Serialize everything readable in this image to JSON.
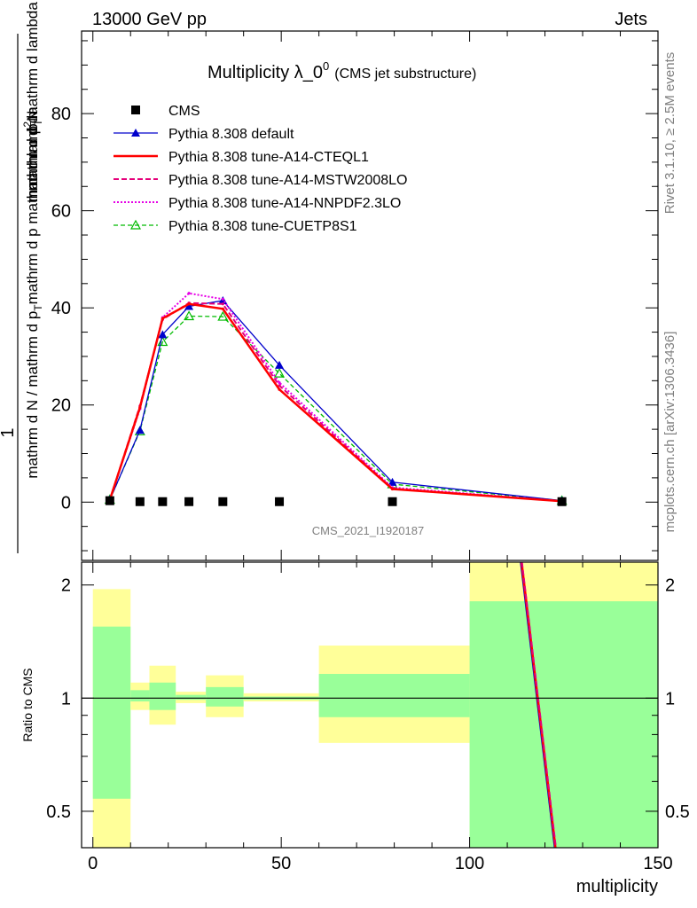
{
  "header": {
    "left": "13000 GeV pp",
    "right": "Jets"
  },
  "side_labels": {
    "rivet": "Rivet 3.1.10, ≥ 2.5M events",
    "mcplots": "mcplots.cern.ch [arXiv:1306.3436]"
  },
  "watermark": "CMS_2021_I1920187",
  "title": {
    "main": "Multiplicity λ_0",
    "sup": "0",
    "sub": "(CMS jet substructure)"
  },
  "ylabel_main": {
    "numer": "mathrm d²N",
    "denom_full": "mathrm d N / mathrm d p_T mathrm d p_T mathrm d lambda",
    "one": "1",
    "denom_part1": "mathrm d N / mathrm d p",
    "denom_part2": "mathrm d p",
    "denom_part3": "mathrm d lambda",
    "sub_T": "T",
    "numer_base": "mathrm d",
    "numer_sup": "2",
    "numer_N": "N",
    "denom2_part1": "mathrm d p",
    "denom2_part2": "mathrm d lambda"
  },
  "ylabel_ratio": "Ratio to CMS",
  "xlabel": "multiplicity",
  "colors": {
    "cms": "#000000",
    "default": "#0000cc",
    "cteql1": "#ff0000",
    "mstw": "#e5007a",
    "nnpdf": "#e600e6",
    "cuetp8s1": "#00bb00",
    "band_inner": "#99ff99",
    "band_outer": "#ffff99"
  },
  "legend": [
    {
      "label": "CMS",
      "key": "cms"
    },
    {
      "label": "Pythia 8.308 default",
      "key": "default"
    },
    {
      "label": "Pythia 8.308 tune-A14-CTEQL1",
      "key": "cteql1"
    },
    {
      "label": "Pythia 8.308 tune-A14-MSTW2008LO",
      "key": "mstw"
    },
    {
      "label": "Pythia 8.308 tune-A14-NNPDF2.3LO",
      "key": "nnpdf"
    },
    {
      "label": "Pythia 8.308 tune-CUETP8S1",
      "key": "cuetp8s1"
    }
  ],
  "chart_data": {
    "type": "line",
    "xlim": [
      -3,
      150
    ],
    "main_ylim": [
      -12,
      97
    ],
    "ratio_ylim": [
      0.4,
      2.3
    ],
    "ratio_scale": "log",
    "main_yticks": [
      "0",
      "20",
      "40",
      "60",
      "80"
    ],
    "ratio_yticks": [
      "0.5",
      "1",
      "2"
    ],
    "xticks": [
      "0",
      "50",
      "100",
      "150"
    ],
    "x": [
      4.5,
      12.5,
      18.5,
      25.5,
      34.5,
      49.5,
      79.5,
      124.5
    ],
    "series": [
      {
        "name": "CMS",
        "key": "cms",
        "values": [
          0.3,
          0.1,
          0.1,
          0.1,
          0.1,
          0.1,
          0.1,
          0.1
        ]
      },
      {
        "name": "Pythia 8.308 default",
        "key": "default",
        "values": [
          0.5,
          14.8,
          34.5,
          40.3,
          41.5,
          28.2,
          4.1,
          0.3
        ]
      },
      {
        "name": "Pythia 8.308 tune-A14-CTEQL1",
        "key": "cteql1",
        "values": [
          0.5,
          19.5,
          37.8,
          40.8,
          39.8,
          23.2,
          2.7,
          0.2
        ]
      },
      {
        "name": "Pythia 8.308 tune-A14-MSTW2008LO",
        "key": "mstw",
        "values": [
          0.5,
          19.8,
          37.6,
          41.0,
          40.8,
          24.0,
          2.8,
          0.2
        ]
      },
      {
        "name": "Pythia 8.308 tune-A14-NNPDF2.3LO",
        "key": "nnpdf",
        "values": [
          0.5,
          19.2,
          38.0,
          43.0,
          41.8,
          24.6,
          3.0,
          0.2
        ]
      },
      {
        "name": "Pythia 8.308 tune-CUETP8S1",
        "key": "cuetp8s1",
        "values": [
          0.5,
          14.6,
          33.0,
          38.3,
          38.2,
          26.5,
          3.7,
          0.3
        ]
      }
    ],
    "ratio_bands": [
      {
        "x0": 0,
        "x1": 10,
        "inner": [
          0.54,
          1.55
        ],
        "outer": [
          0.35,
          1.95
        ]
      },
      {
        "x0": 10,
        "x1": 15,
        "inner": [
          0.98,
          1.05
        ],
        "outer": [
          0.93,
          1.1
        ]
      },
      {
        "x0": 15,
        "x1": 22,
        "inner": [
          0.93,
          1.1
        ],
        "outer": [
          0.85,
          1.22
        ]
      },
      {
        "x0": 22,
        "x1": 30,
        "inner": [
          0.99,
          1.02
        ],
        "outer": [
          0.97,
          1.04
        ]
      },
      {
        "x0": 30,
        "x1": 40,
        "inner": [
          0.95,
          1.07
        ],
        "outer": [
          0.89,
          1.15
        ]
      },
      {
        "x0": 40,
        "x1": 60,
        "inner": [
          0.99,
          1.01
        ],
        "outer": [
          0.98,
          1.03
        ]
      },
      {
        "x0": 60,
        "x1": 100,
        "inner": [
          0.89,
          1.16
        ],
        "outer": [
          0.76,
          1.38
        ]
      },
      {
        "x0": 100,
        "x1": 150,
        "inner": [
          0.4,
          1.81
        ],
        "outer": [
          0.4,
          2.3
        ]
      }
    ],
    "ratio_lines": [
      {
        "key": "default",
        "points": [
          [
            113.5,
            2.3
          ],
          [
            122.5,
            0.4
          ]
        ]
      },
      {
        "key": "cteql1",
        "points": [
          [
            113.8,
            2.3
          ],
          [
            122.8,
            0.4
          ]
        ]
      },
      {
        "key": "mstw",
        "points": [
          [
            113.9,
            2.3
          ],
          [
            122.9,
            0.4
          ]
        ]
      }
    ]
  }
}
